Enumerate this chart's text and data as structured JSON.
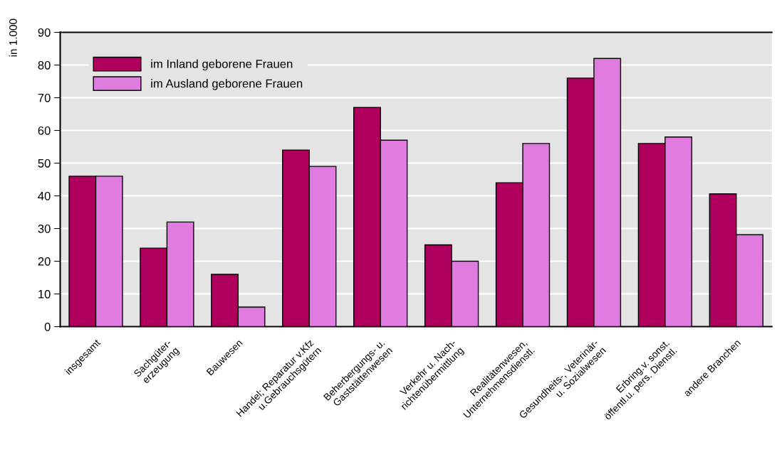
{
  "chart_data": {
    "type": "bar",
    "ylabel": "in 1.000",
    "categories": [
      "insgesamt",
      "Sachgüter-\nerzeugung",
      "Bauwesen",
      "Handel; Reparatur v.Kfz\nu.Gebrauchsgütern",
      "Beherbergungs- u.\nGaststättenwesen",
      "Verkehr u. Nach-\nrichtenübermittlung",
      "Realitätenwesen,\nUnternehmensdienstl.",
      "Gesundheits-, Veterinär-\nu. Sozialwesen",
      "Erbring.v. sonst.\nöffentl.u. pers. Dienstl.",
      "andere Branchen"
    ],
    "series": [
      {
        "name": "im Inland geborene Frauen",
        "color": "#b0005e",
        "values": [
          46,
          24,
          16,
          54,
          67,
          25,
          44,
          76,
          56,
          40.6
        ]
      },
      {
        "name": "im Ausland geborene Frauen",
        "color": "#e07bdf",
        "values": [
          46,
          32,
          6,
          49,
          57,
          20,
          56,
          82,
          58,
          28.1
        ]
      }
    ],
    "ylim": [
      0,
      90
    ],
    "yticks": [
      0,
      10,
      20,
      30,
      40,
      50,
      60,
      70,
      80,
      90
    ],
    "grid": "y",
    "legend": "top left"
  }
}
